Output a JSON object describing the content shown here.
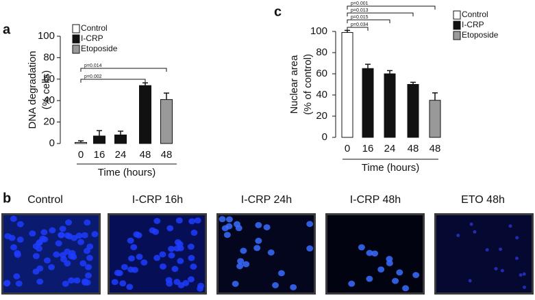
{
  "chart_data": [
    {
      "type": "bar",
      "panel_label": "a",
      "ylabel": [
        "DNA degradation",
        "(% cells)"
      ],
      "xlabel": "Time (hours)",
      "categories": [
        "0",
        "16",
        "24",
        "48",
        "48"
      ],
      "values": [
        1,
        7,
        8,
        54,
        41
      ],
      "errors": [
        1.5,
        5,
        3.5,
        2.5,
        6
      ],
      "colors": [
        "#ffffff",
        "#111111",
        "#111111",
        "#111111",
        "#999999"
      ],
      "legend": [
        {
          "name": "Control",
          "color": "#ffffff"
        },
        {
          "name": "I-CRP",
          "color": "#111111"
        },
        {
          "name": "Etoposide",
          "color": "#999999"
        }
      ],
      "ylim": [
        0,
        100
      ],
      "yticks": [
        0,
        20,
        40,
        60,
        80,
        100
      ],
      "comparisons": [
        {
          "label": "p=0.014"
        },
        {
          "label": "p=0.002"
        }
      ]
    },
    {
      "type": "bar",
      "panel_label": "c",
      "ylabel": [
        "Nuclear area",
        "(% of control)"
      ],
      "xlabel": "Time (hours)",
      "categories": [
        "0",
        "16",
        "24",
        "48",
        "48"
      ],
      "values": [
        99,
        65,
        60,
        50,
        35
      ],
      "errors": [
        2,
        4,
        3,
        2,
        7
      ],
      "colors": [
        "#ffffff",
        "#111111",
        "#111111",
        "#111111",
        "#999999"
      ],
      "legend": [
        {
          "name": "Control",
          "color": "#ffffff"
        },
        {
          "name": "I-CRP",
          "color": "#111111"
        },
        {
          "name": "Etoposide",
          "color": "#999999"
        }
      ],
      "ylim": [
        0,
        100
      ],
      "yticks": [
        0,
        20,
        40,
        60,
        80,
        100
      ],
      "comparisons": [
        {
          "label": "p=0.001"
        },
        {
          "label": "p=0.013"
        },
        {
          "label": "p=0.015"
        },
        {
          "label": "p=0.034"
        }
      ]
    }
  ],
  "image_row": {
    "panel_label": "b",
    "captions": [
      "Control",
      "I-CRP 16h",
      "I-CRP 24h",
      "I-CRP 48h",
      "ETO 48h"
    ]
  }
}
